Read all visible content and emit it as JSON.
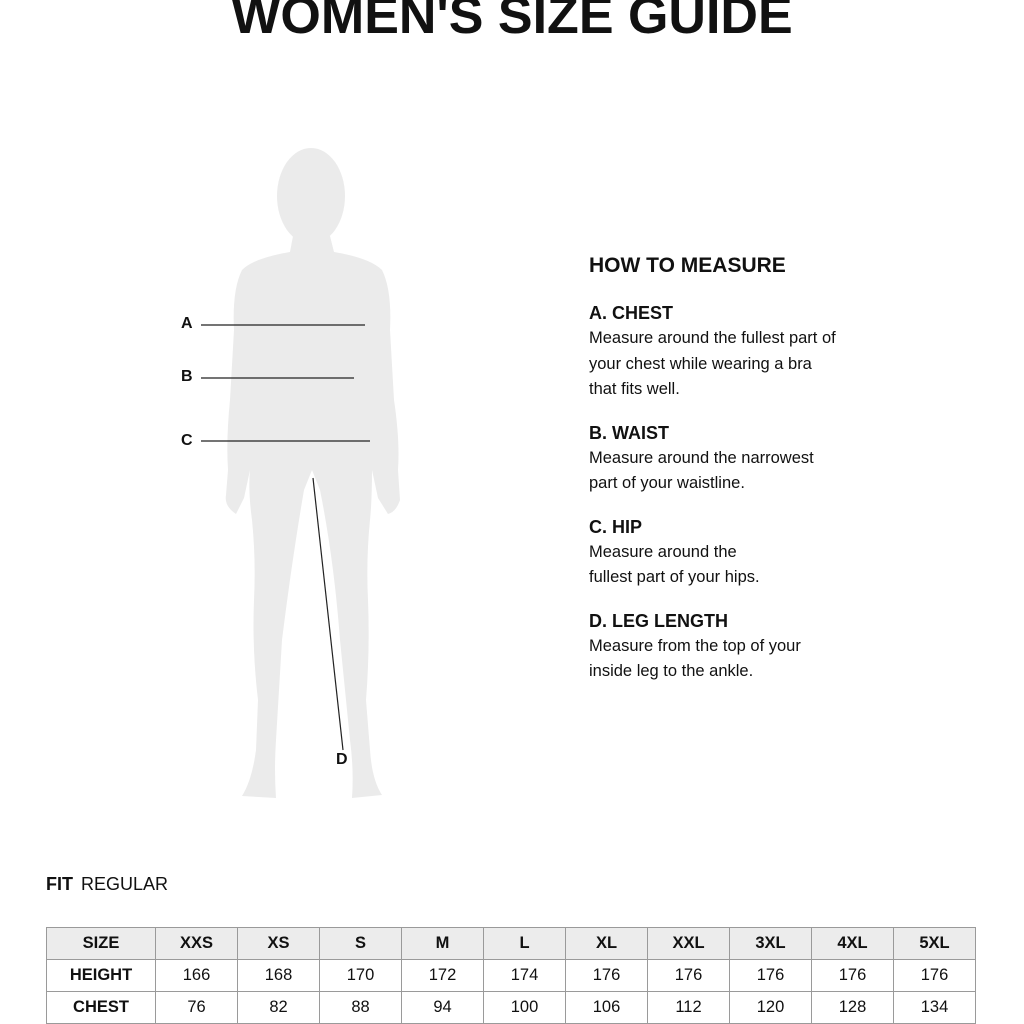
{
  "title": "WOMEN'S SIZE GUIDE",
  "figure": {
    "markers": [
      "A",
      "B",
      "C",
      "D"
    ]
  },
  "how_to_measure": {
    "heading": "HOW TO MEASURE",
    "sections": [
      {
        "title": "A. CHEST",
        "text": "Measure around the fullest part of your chest while wearing a bra that fits well."
      },
      {
        "title": "B. WAIST",
        "text": "Measure around the narrowest part of your waistline."
      },
      {
        "title": "C. HIP",
        "text": "Measure around the fullest part of your hips."
      },
      {
        "title": "D. LEG LENGTH",
        "text": "Measure from the top of your inside leg to the ankle."
      }
    ]
  },
  "fit": {
    "label": "FIT",
    "value": "REGULAR"
  },
  "table": {
    "header": [
      "SIZE",
      "XXS",
      "XS",
      "S",
      "M",
      "L",
      "XL",
      "XXL",
      "3XL",
      "4XL",
      "5XL"
    ],
    "rows": [
      [
        "HEIGHT",
        "166",
        "168",
        "170",
        "172",
        "174",
        "176",
        "176",
        "176",
        "176",
        "176"
      ],
      [
        "CHEST",
        "76",
        "82",
        "88",
        "94",
        "100",
        "106",
        "112",
        "120",
        "128",
        "134"
      ]
    ]
  }
}
